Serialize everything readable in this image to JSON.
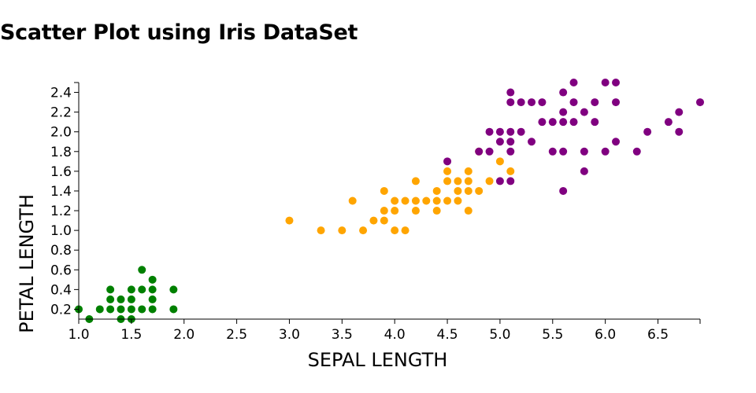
{
  "chart_data": {
    "type": "scatter",
    "title": "Scatter Plot using Iris DataSet",
    "xlabel": "SEPAL LENGTH",
    "ylabel": "PETAL LENGTH",
    "xlim": [
      1.0,
      6.9
    ],
    "ylim": [
      0.1,
      2.5
    ],
    "xticks": [
      "1.0",
      "1.5",
      "2.0",
      "2.5",
      "3.0",
      "3.5",
      "4.0",
      "4.5",
      "5.0",
      "5.5",
      "6.0",
      "6.5"
    ],
    "yticks": [
      "0.2",
      "0.4",
      "0.6",
      "0.8",
      "1.0",
      "1.2",
      "1.4",
      "1.6",
      "1.8",
      "2.0",
      "2.2",
      "2.4"
    ],
    "grid": false,
    "series": [
      {
        "color": "#008000",
        "points": [
          [
            1.0,
            0.2
          ],
          [
            1.1,
            0.1
          ],
          [
            1.2,
            0.2
          ],
          [
            1.3,
            0.2
          ],
          [
            1.3,
            0.3
          ],
          [
            1.3,
            0.4
          ],
          [
            1.4,
            0.1
          ],
          [
            1.4,
            0.2
          ],
          [
            1.4,
            0.3
          ],
          [
            1.5,
            0.1
          ],
          [
            1.5,
            0.2
          ],
          [
            1.5,
            0.3
          ],
          [
            1.5,
            0.4
          ],
          [
            1.6,
            0.2
          ],
          [
            1.6,
            0.4
          ],
          [
            1.6,
            0.6
          ],
          [
            1.7,
            0.2
          ],
          [
            1.7,
            0.3
          ],
          [
            1.7,
            0.4
          ],
          [
            1.7,
            0.5
          ],
          [
            1.9,
            0.2
          ],
          [
            1.9,
            0.4
          ]
        ]
      },
      {
        "color": "#FFA500",
        "points": [
          [
            3.0,
            1.1
          ],
          [
            3.3,
            1.0
          ],
          [
            3.5,
            1.0
          ],
          [
            3.6,
            1.3
          ],
          [
            3.7,
            1.0
          ],
          [
            3.8,
            1.1
          ],
          [
            3.9,
            1.1
          ],
          [
            3.9,
            1.2
          ],
          [
            3.9,
            1.4
          ],
          [
            4.0,
            1.0
          ],
          [
            4.0,
            1.2
          ],
          [
            4.0,
            1.3
          ],
          [
            4.1,
            1.0
          ],
          [
            4.1,
            1.3
          ],
          [
            4.2,
            1.2
          ],
          [
            4.2,
            1.3
          ],
          [
            4.2,
            1.5
          ],
          [
            4.3,
            1.3
          ],
          [
            4.4,
            1.2
          ],
          [
            4.4,
            1.3
          ],
          [
            4.4,
            1.4
          ],
          [
            4.5,
            1.3
          ],
          [
            4.5,
            1.5
          ],
          [
            4.5,
            1.6
          ],
          [
            4.6,
            1.3
          ],
          [
            4.6,
            1.4
          ],
          [
            4.6,
            1.5
          ],
          [
            4.7,
            1.2
          ],
          [
            4.7,
            1.4
          ],
          [
            4.7,
            1.5
          ],
          [
            4.7,
            1.6
          ],
          [
            4.8,
            1.4
          ],
          [
            4.8,
            1.8
          ],
          [
            4.9,
            1.5
          ],
          [
            5.0,
            1.7
          ],
          [
            5.1,
            1.6
          ]
        ]
      },
      {
        "color": "#800080",
        "points": [
          [
            4.5,
            1.7
          ],
          [
            4.8,
            1.8
          ],
          [
            4.9,
            1.8
          ],
          [
            4.9,
            2.0
          ],
          [
            5.0,
            1.5
          ],
          [
            5.0,
            1.9
          ],
          [
            5.0,
            2.0
          ],
          [
            5.1,
            1.5
          ],
          [
            5.1,
            1.8
          ],
          [
            5.1,
            1.9
          ],
          [
            5.1,
            2.0
          ],
          [
            5.1,
            2.3
          ],
          [
            5.1,
            2.4
          ],
          [
            5.2,
            2.0
          ],
          [
            5.2,
            2.3
          ],
          [
            5.3,
            1.9
          ],
          [
            5.3,
            2.3
          ],
          [
            5.4,
            2.1
          ],
          [
            5.4,
            2.3
          ],
          [
            5.5,
            1.8
          ],
          [
            5.5,
            2.1
          ],
          [
            5.6,
            1.4
          ],
          [
            5.6,
            1.8
          ],
          [
            5.6,
            2.1
          ],
          [
            5.6,
            2.2
          ],
          [
            5.6,
            2.4
          ],
          [
            5.7,
            2.1
          ],
          [
            5.7,
            2.3
          ],
          [
            5.7,
            2.5
          ],
          [
            5.8,
            1.6
          ],
          [
            5.8,
            1.8
          ],
          [
            5.8,
            2.2
          ],
          [
            5.9,
            2.1
          ],
          [
            5.9,
            2.3
          ],
          [
            6.0,
            1.8
          ],
          [
            6.0,
            2.5
          ],
          [
            6.1,
            1.9
          ],
          [
            6.1,
            2.3
          ],
          [
            6.1,
            2.5
          ],
          [
            6.3,
            1.8
          ],
          [
            6.4,
            2.0
          ],
          [
            6.6,
            2.1
          ],
          [
            6.7,
            2.0
          ],
          [
            6.7,
            2.2
          ],
          [
            6.9,
            2.3
          ]
        ]
      }
    ]
  }
}
